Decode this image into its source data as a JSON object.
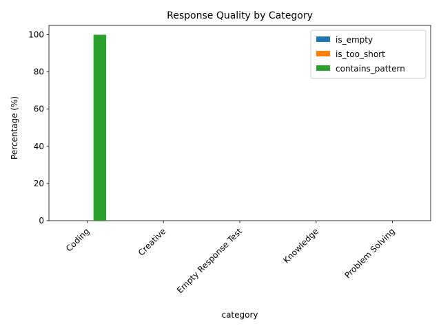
{
  "chart_data": {
    "type": "bar",
    "title": "Response Quality by Category",
    "xlabel": "category",
    "ylabel": "Percentage (%)",
    "categories": [
      "Coding",
      "Creative",
      "Empty Response Test",
      "Knowledge",
      "Problem Solving"
    ],
    "series": [
      {
        "name": "is_empty",
        "color": "#1f77b4",
        "values": [
          0,
          0,
          0,
          0,
          0
        ]
      },
      {
        "name": "is_too_short",
        "color": "#ff7f0e",
        "values": [
          0,
          0,
          0,
          0,
          0
        ]
      },
      {
        "name": "contains_pattern",
        "color": "#2ca02c",
        "values": [
          100,
          0,
          0,
          0,
          0
        ]
      }
    ],
    "ylim": [
      0,
      105
    ],
    "yticks": [
      0,
      20,
      40,
      60,
      80,
      100
    ],
    "grid": false,
    "legend": "top-right"
  }
}
